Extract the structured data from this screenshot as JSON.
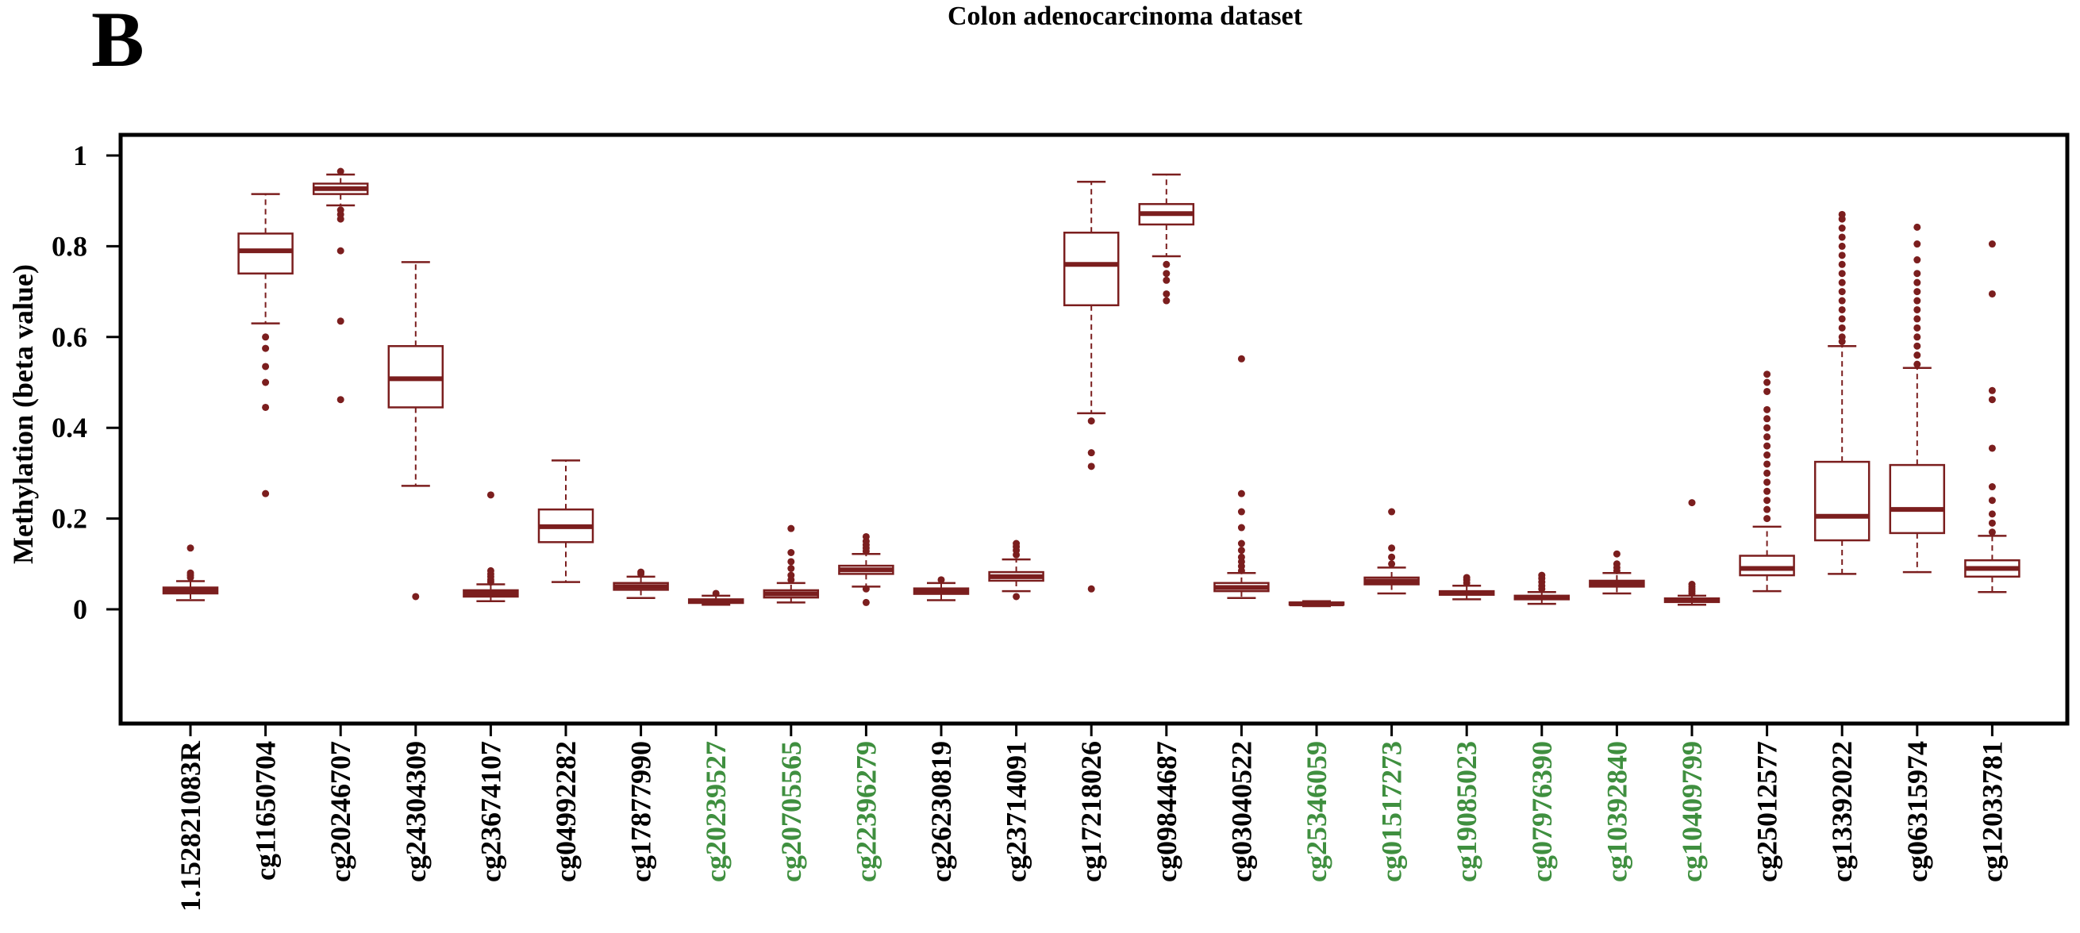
{
  "panel_letter": "B",
  "chart_data": {
    "type": "boxplot",
    "title": "Colon adenocarcinoma dataset",
    "xlabel": "",
    "ylabel": "Methylation (beta value)",
    "ylim": [
      -0.25,
      1.05
    ],
    "yticks": [
      0,
      0.2,
      0.4,
      0.6,
      0.8,
      1
    ],
    "ytick_labels": [
      "0",
      "0.2",
      "0.4",
      "0.6",
      "0.8",
      "1"
    ],
    "box_color": "#7b1e1e",
    "label_colors": {
      "default": "#000000",
      "highlight": "#3f8f3f"
    },
    "boxes": [
      {
        "label": "1.152821083R",
        "highlight": false,
        "q1": 0.035,
        "median": 0.042,
        "q3": 0.048,
        "whisker_low": 0.02,
        "whisker_high": 0.062,
        "outliers": [
          0.07,
          0.075,
          0.08,
          0.135
        ]
      },
      {
        "label": "cg11650704",
        "highlight": false,
        "q1": 0.74,
        "median": 0.79,
        "q3": 0.828,
        "whisker_low": 0.63,
        "whisker_high": 0.915,
        "outliers": [
          0.6,
          0.575,
          0.535,
          0.5,
          0.445,
          0.255
        ]
      },
      {
        "label": "cg20246707",
        "highlight": false,
        "q1": 0.915,
        "median": 0.927,
        "q3": 0.938,
        "whisker_low": 0.89,
        "whisker_high": 0.958,
        "outliers": [
          0.965,
          0.88,
          0.87,
          0.86,
          0.79,
          0.635,
          0.462
        ]
      },
      {
        "label": "cg24304309",
        "highlight": false,
        "q1": 0.445,
        "median": 0.508,
        "q3": 0.58,
        "whisker_low": 0.272,
        "whisker_high": 0.765,
        "outliers": [
          0.028
        ]
      },
      {
        "label": "cg23674107",
        "highlight": false,
        "q1": 0.028,
        "median": 0.035,
        "q3": 0.042,
        "whisker_low": 0.018,
        "whisker_high": 0.055,
        "outliers": [
          0.06,
          0.065,
          0.072,
          0.078,
          0.085,
          0.252
        ]
      },
      {
        "label": "cg04992282",
        "highlight": false,
        "q1": 0.148,
        "median": 0.182,
        "q3": 0.22,
        "whisker_low": 0.06,
        "whisker_high": 0.328,
        "outliers": []
      },
      {
        "label": "cg17877990",
        "highlight": false,
        "q1": 0.043,
        "median": 0.05,
        "q3": 0.058,
        "whisker_low": 0.025,
        "whisker_high": 0.072,
        "outliers": [
          0.078,
          0.082
        ]
      },
      {
        "label": "cg20239527",
        "highlight": true,
        "q1": 0.014,
        "median": 0.018,
        "q3": 0.022,
        "whisker_low": 0.01,
        "whisker_high": 0.03,
        "outliers": [
          0.035
        ]
      },
      {
        "label": "cg20705565",
        "highlight": true,
        "q1": 0.026,
        "median": 0.034,
        "q3": 0.042,
        "whisker_low": 0.015,
        "whisker_high": 0.058,
        "outliers": [
          0.065,
          0.075,
          0.09,
          0.105,
          0.125,
          0.178
        ]
      },
      {
        "label": "cg22396279",
        "highlight": true,
        "q1": 0.078,
        "median": 0.087,
        "q3": 0.096,
        "whisker_low": 0.05,
        "whisker_high": 0.122,
        "outliers": [
          0.128,
          0.135,
          0.142,
          0.15,
          0.16,
          0.045,
          0.015
        ]
      },
      {
        "label": "cg26230819",
        "highlight": false,
        "q1": 0.034,
        "median": 0.04,
        "q3": 0.046,
        "whisker_low": 0.02,
        "whisker_high": 0.058,
        "outliers": [
          0.065
        ]
      },
      {
        "label": "cg23714091",
        "highlight": false,
        "q1": 0.063,
        "median": 0.072,
        "q3": 0.082,
        "whisker_low": 0.04,
        "whisker_high": 0.11,
        "outliers": [
          0.12,
          0.13,
          0.138,
          0.145,
          0.028
        ]
      },
      {
        "label": "cg17218026",
        "highlight": false,
        "q1": 0.67,
        "median": 0.76,
        "q3": 0.83,
        "whisker_low": 0.432,
        "whisker_high": 0.942,
        "outliers": [
          0.415,
          0.345,
          0.315,
          0.045
        ]
      },
      {
        "label": "cg09844687",
        "highlight": false,
        "q1": 0.848,
        "median": 0.872,
        "q3": 0.893,
        "whisker_low": 0.778,
        "whisker_high": 0.958,
        "outliers": [
          0.76,
          0.74,
          0.725,
          0.695,
          0.68
        ]
      },
      {
        "label": "cg03040522",
        "highlight": false,
        "q1": 0.04,
        "median": 0.048,
        "q3": 0.058,
        "whisker_low": 0.025,
        "whisker_high": 0.08,
        "outliers": [
          0.085,
          0.095,
          0.105,
          0.115,
          0.13,
          0.145,
          0.18,
          0.215,
          0.255,
          0.552
        ]
      },
      {
        "label": "cg25346059",
        "highlight": true,
        "q1": 0.01,
        "median": 0.012,
        "q3": 0.015,
        "whisker_low": 0.007,
        "whisker_high": 0.018,
        "outliers": []
      },
      {
        "label": "cg01517273",
        "highlight": true,
        "q1": 0.055,
        "median": 0.062,
        "q3": 0.07,
        "whisker_low": 0.035,
        "whisker_high": 0.092,
        "outliers": [
          0.1,
          0.115,
          0.135,
          0.215
        ]
      },
      {
        "label": "cg19085023",
        "highlight": true,
        "q1": 0.032,
        "median": 0.036,
        "q3": 0.04,
        "whisker_low": 0.022,
        "whisker_high": 0.052,
        "outliers": [
          0.058,
          0.065,
          0.07
        ]
      },
      {
        "label": "cg07976390",
        "highlight": true,
        "q1": 0.022,
        "median": 0.026,
        "q3": 0.03,
        "whisker_low": 0.012,
        "whisker_high": 0.038,
        "outliers": [
          0.045,
          0.052,
          0.06,
          0.068,
          0.075
        ]
      },
      {
        "label": "cg10392840",
        "highlight": true,
        "q1": 0.05,
        "median": 0.056,
        "q3": 0.063,
        "whisker_low": 0.035,
        "whisker_high": 0.08,
        "outliers": [
          0.085,
          0.092,
          0.1,
          0.122
        ]
      },
      {
        "label": "cg10409799",
        "highlight": true,
        "q1": 0.016,
        "median": 0.02,
        "q3": 0.024,
        "whisker_low": 0.01,
        "whisker_high": 0.03,
        "outliers": [
          0.035,
          0.04,
          0.045,
          0.05,
          0.055,
          0.235
        ]
      },
      {
        "label": "cg25012577",
        "highlight": false,
        "q1": 0.075,
        "median": 0.09,
        "q3": 0.118,
        "whisker_low": 0.04,
        "whisker_high": 0.182,
        "outliers": [
          0.2,
          0.22,
          0.24,
          0.26,
          0.28,
          0.3,
          0.32,
          0.34,
          0.36,
          0.38,
          0.4,
          0.42,
          0.44,
          0.48,
          0.5,
          0.518
        ]
      },
      {
        "label": "cg13392022",
        "highlight": false,
        "q1": 0.152,
        "median": 0.205,
        "q3": 0.325,
        "whisker_low": 0.078,
        "whisker_high": 0.58,
        "outliers": [
          0.59,
          0.6,
          0.62,
          0.64,
          0.66,
          0.68,
          0.7,
          0.72,
          0.74,
          0.76,
          0.78,
          0.8,
          0.82,
          0.84,
          0.86,
          0.87
        ]
      },
      {
        "label": "cg06315974",
        "highlight": false,
        "q1": 0.168,
        "median": 0.22,
        "q3": 0.318,
        "whisker_low": 0.082,
        "whisker_high": 0.532,
        "outliers": [
          0.54,
          0.56,
          0.58,
          0.6,
          0.62,
          0.64,
          0.66,
          0.68,
          0.7,
          0.72,
          0.74,
          0.77,
          0.805,
          0.842
        ]
      },
      {
        "label": "cg12033781",
        "highlight": false,
        "q1": 0.072,
        "median": 0.09,
        "q3": 0.108,
        "whisker_low": 0.038,
        "whisker_high": 0.162,
        "outliers": [
          0.17,
          0.19,
          0.21,
          0.24,
          0.27,
          0.355,
          0.462,
          0.482,
          0.695,
          0.805
        ]
      }
    ]
  }
}
